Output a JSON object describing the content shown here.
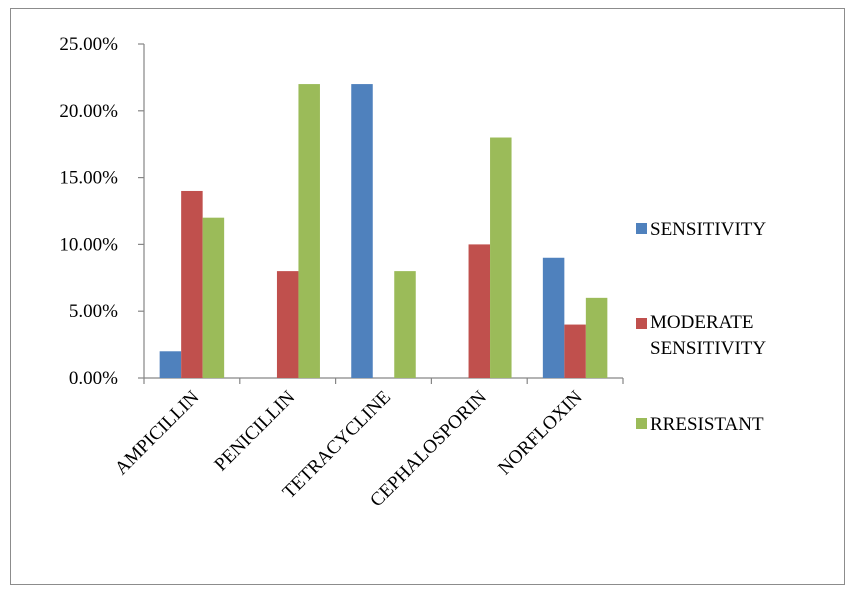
{
  "chart_data": {
    "type": "bar",
    "categories": [
      "AMPICILLIN",
      "PENICILLIN",
      "TETRACYCLINE",
      "CEPHALOSPORIN",
      "NORFLOXIN"
    ],
    "series": [
      {
        "name": "SENSITIVITY",
        "color": "#4f81bd",
        "values": [
          2,
          0,
          22,
          0,
          9
        ]
      },
      {
        "name": "MODERATE SENSITIVITY",
        "color": "#c0504d",
        "values": [
          14,
          8,
          0,
          10,
          4
        ]
      },
      {
        "name": "RRESISTANT",
        "color": "#9bbb59",
        "values": [
          12,
          22,
          8,
          18,
          6
        ]
      }
    ],
    "ylim": [
      0,
      25
    ],
    "ytick_labels": [
      "0.00%",
      "5.00%",
      "10.00%",
      "15.00%",
      "20.00%",
      "25.00%"
    ],
    "grid": false,
    "legend": "right",
    "title": "",
    "xlabel": "",
    "ylabel": ""
  }
}
